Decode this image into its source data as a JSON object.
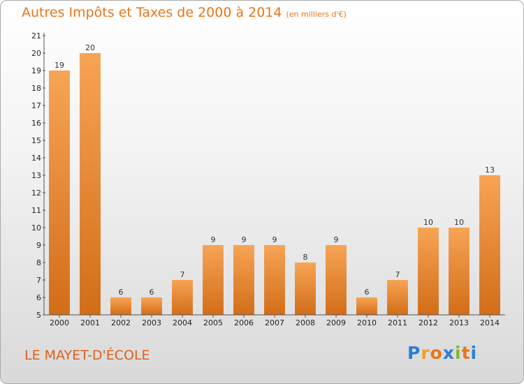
{
  "chart_data": {
    "type": "bar",
    "title": "Autres Impôts et Taxes de 2000 à 2014",
    "subtitle": "(en milliers d'€)",
    "categories": [
      "2000",
      "2001",
      "2002",
      "2003",
      "2004",
      "2005",
      "2006",
      "2007",
      "2008",
      "2009",
      "2010",
      "2011",
      "2012",
      "2013",
      "2014"
    ],
    "values": [
      19,
      20,
      6,
      6,
      7,
      9,
      9,
      9,
      8,
      9,
      6,
      7,
      10,
      10,
      13
    ],
    "ylim": [
      5,
      21
    ],
    "yticks": [
      5,
      6,
      7,
      8,
      9,
      10,
      11,
      12,
      13,
      14,
      15,
      16,
      17,
      18,
      19,
      20,
      21
    ],
    "grid": false,
    "bar_color": "#f0913a"
  },
  "commune": "LE MAYET-D'ÉCOLE",
  "logo": {
    "letters": [
      "P",
      "r",
      "o",
      "x",
      "i",
      "t",
      "i"
    ],
    "colors": [
      "#2a7fd4",
      "#f0a020",
      "#e8751a",
      "#2a7fd4",
      "#7cb82f",
      "#e8751a",
      "#2a7fd4"
    ]
  }
}
